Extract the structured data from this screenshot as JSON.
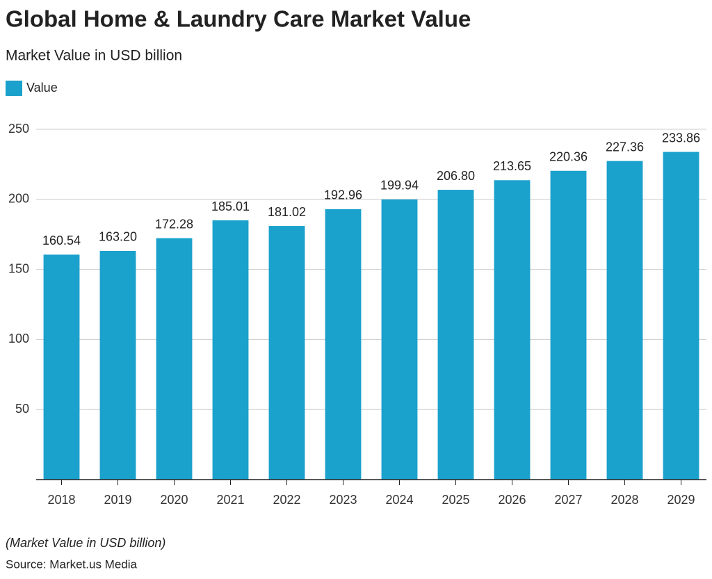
{
  "chart_data": {
    "type": "bar",
    "title": "Global Home & Laundry Care Market Value",
    "subtitle": "Market Value in USD billion",
    "categories": [
      "2018",
      "2019",
      "2020",
      "2021",
      "2022",
      "2023",
      "2024",
      "2025",
      "2026",
      "2027",
      "2028",
      "2029"
    ],
    "series": [
      {
        "name": "Value",
        "color": "#1aa1cc",
        "values": [
          160.54,
          163.2,
          172.28,
          185.01,
          181.02,
          192.96,
          199.94,
          206.8,
          213.65,
          220.36,
          227.36,
          233.86
        ],
        "value_labels": [
          "160.54",
          "163.20",
          "172.28",
          "185.01",
          "181.02",
          "192.96",
          "199.94",
          "206.80",
          "213.65",
          "220.36",
          "227.36",
          "233.86"
        ]
      }
    ],
    "ylim": [
      0,
      250
    ],
    "yticks": [
      50,
      100,
      150,
      200,
      250
    ],
    "grid": true,
    "note": "(Market Value in USD billion)",
    "source": "Source: Market.us Media"
  }
}
